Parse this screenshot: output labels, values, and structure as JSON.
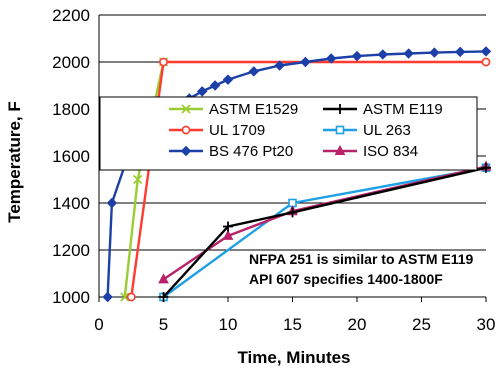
{
  "chart_data": {
    "type": "line",
    "xlabel": "Time, Minutes",
    "ylabel": "Temperature, F",
    "xlim": [
      0,
      30
    ],
    "ylim": [
      1000,
      2200
    ],
    "x_ticks": [
      0,
      5,
      10,
      15,
      20,
      25,
      30
    ],
    "y_ticks": [
      1000,
      1200,
      1400,
      1600,
      1800,
      2000,
      2200
    ],
    "grid": "horizontal",
    "legend_placement": "center-right",
    "series": [
      {
        "name": "ASTM E1529",
        "color": "#9acd32",
        "marker": "x",
        "points": [
          [
            2.0,
            1000
          ],
          [
            3.0,
            1500
          ],
          [
            5.0,
            2000
          ]
        ]
      },
      {
        "name": "ASTM E119",
        "color": "#000000",
        "marker": "plus",
        "points": [
          [
            5,
            1000
          ],
          [
            10,
            1300
          ],
          [
            15,
            1360
          ],
          [
            30,
            1550
          ]
        ]
      },
      {
        "name": "UL 1709",
        "color": "#ff3b30",
        "marker": "circle-open",
        "points": [
          [
            2.5,
            1000
          ],
          [
            5,
            2000
          ],
          [
            30,
            2000
          ]
        ]
      },
      {
        "name": "UL 263",
        "color": "#1ea0e6",
        "marker": "square-open",
        "points": [
          [
            5,
            1000
          ],
          [
            15,
            1400
          ],
          [
            30,
            1550
          ]
        ]
      },
      {
        "name": "BS 476  Pt20",
        "color": "#1c3fa8",
        "marker": "diamond",
        "points": [
          [
            0.67,
            1000
          ],
          [
            1,
            1400
          ],
          [
            2,
            1560
          ],
          [
            3,
            1650
          ],
          [
            4,
            1720
          ],
          [
            5,
            1765
          ],
          [
            6,
            1810
          ],
          [
            7,
            1845
          ],
          [
            8,
            1875
          ],
          [
            9,
            1900
          ],
          [
            10,
            1925
          ],
          [
            12,
            1960
          ],
          [
            14,
            1985
          ],
          [
            16,
            2000
          ],
          [
            18,
            2015
          ],
          [
            20,
            2025
          ],
          [
            22,
            2032
          ],
          [
            24,
            2036
          ],
          [
            26,
            2040
          ],
          [
            28,
            2043
          ],
          [
            30,
            2045
          ]
        ]
      },
      {
        "name": "ISO 834",
        "color": "#b8226a",
        "marker": "triangle",
        "points": [
          [
            5,
            1075
          ],
          [
            10,
            1260
          ],
          [
            15,
            1365
          ],
          [
            30,
            1555
          ]
        ]
      }
    ],
    "annotations": [
      "NFPA 251 is similar to ASTM E119",
      "API 607 specifies 1400-1800F"
    ]
  }
}
